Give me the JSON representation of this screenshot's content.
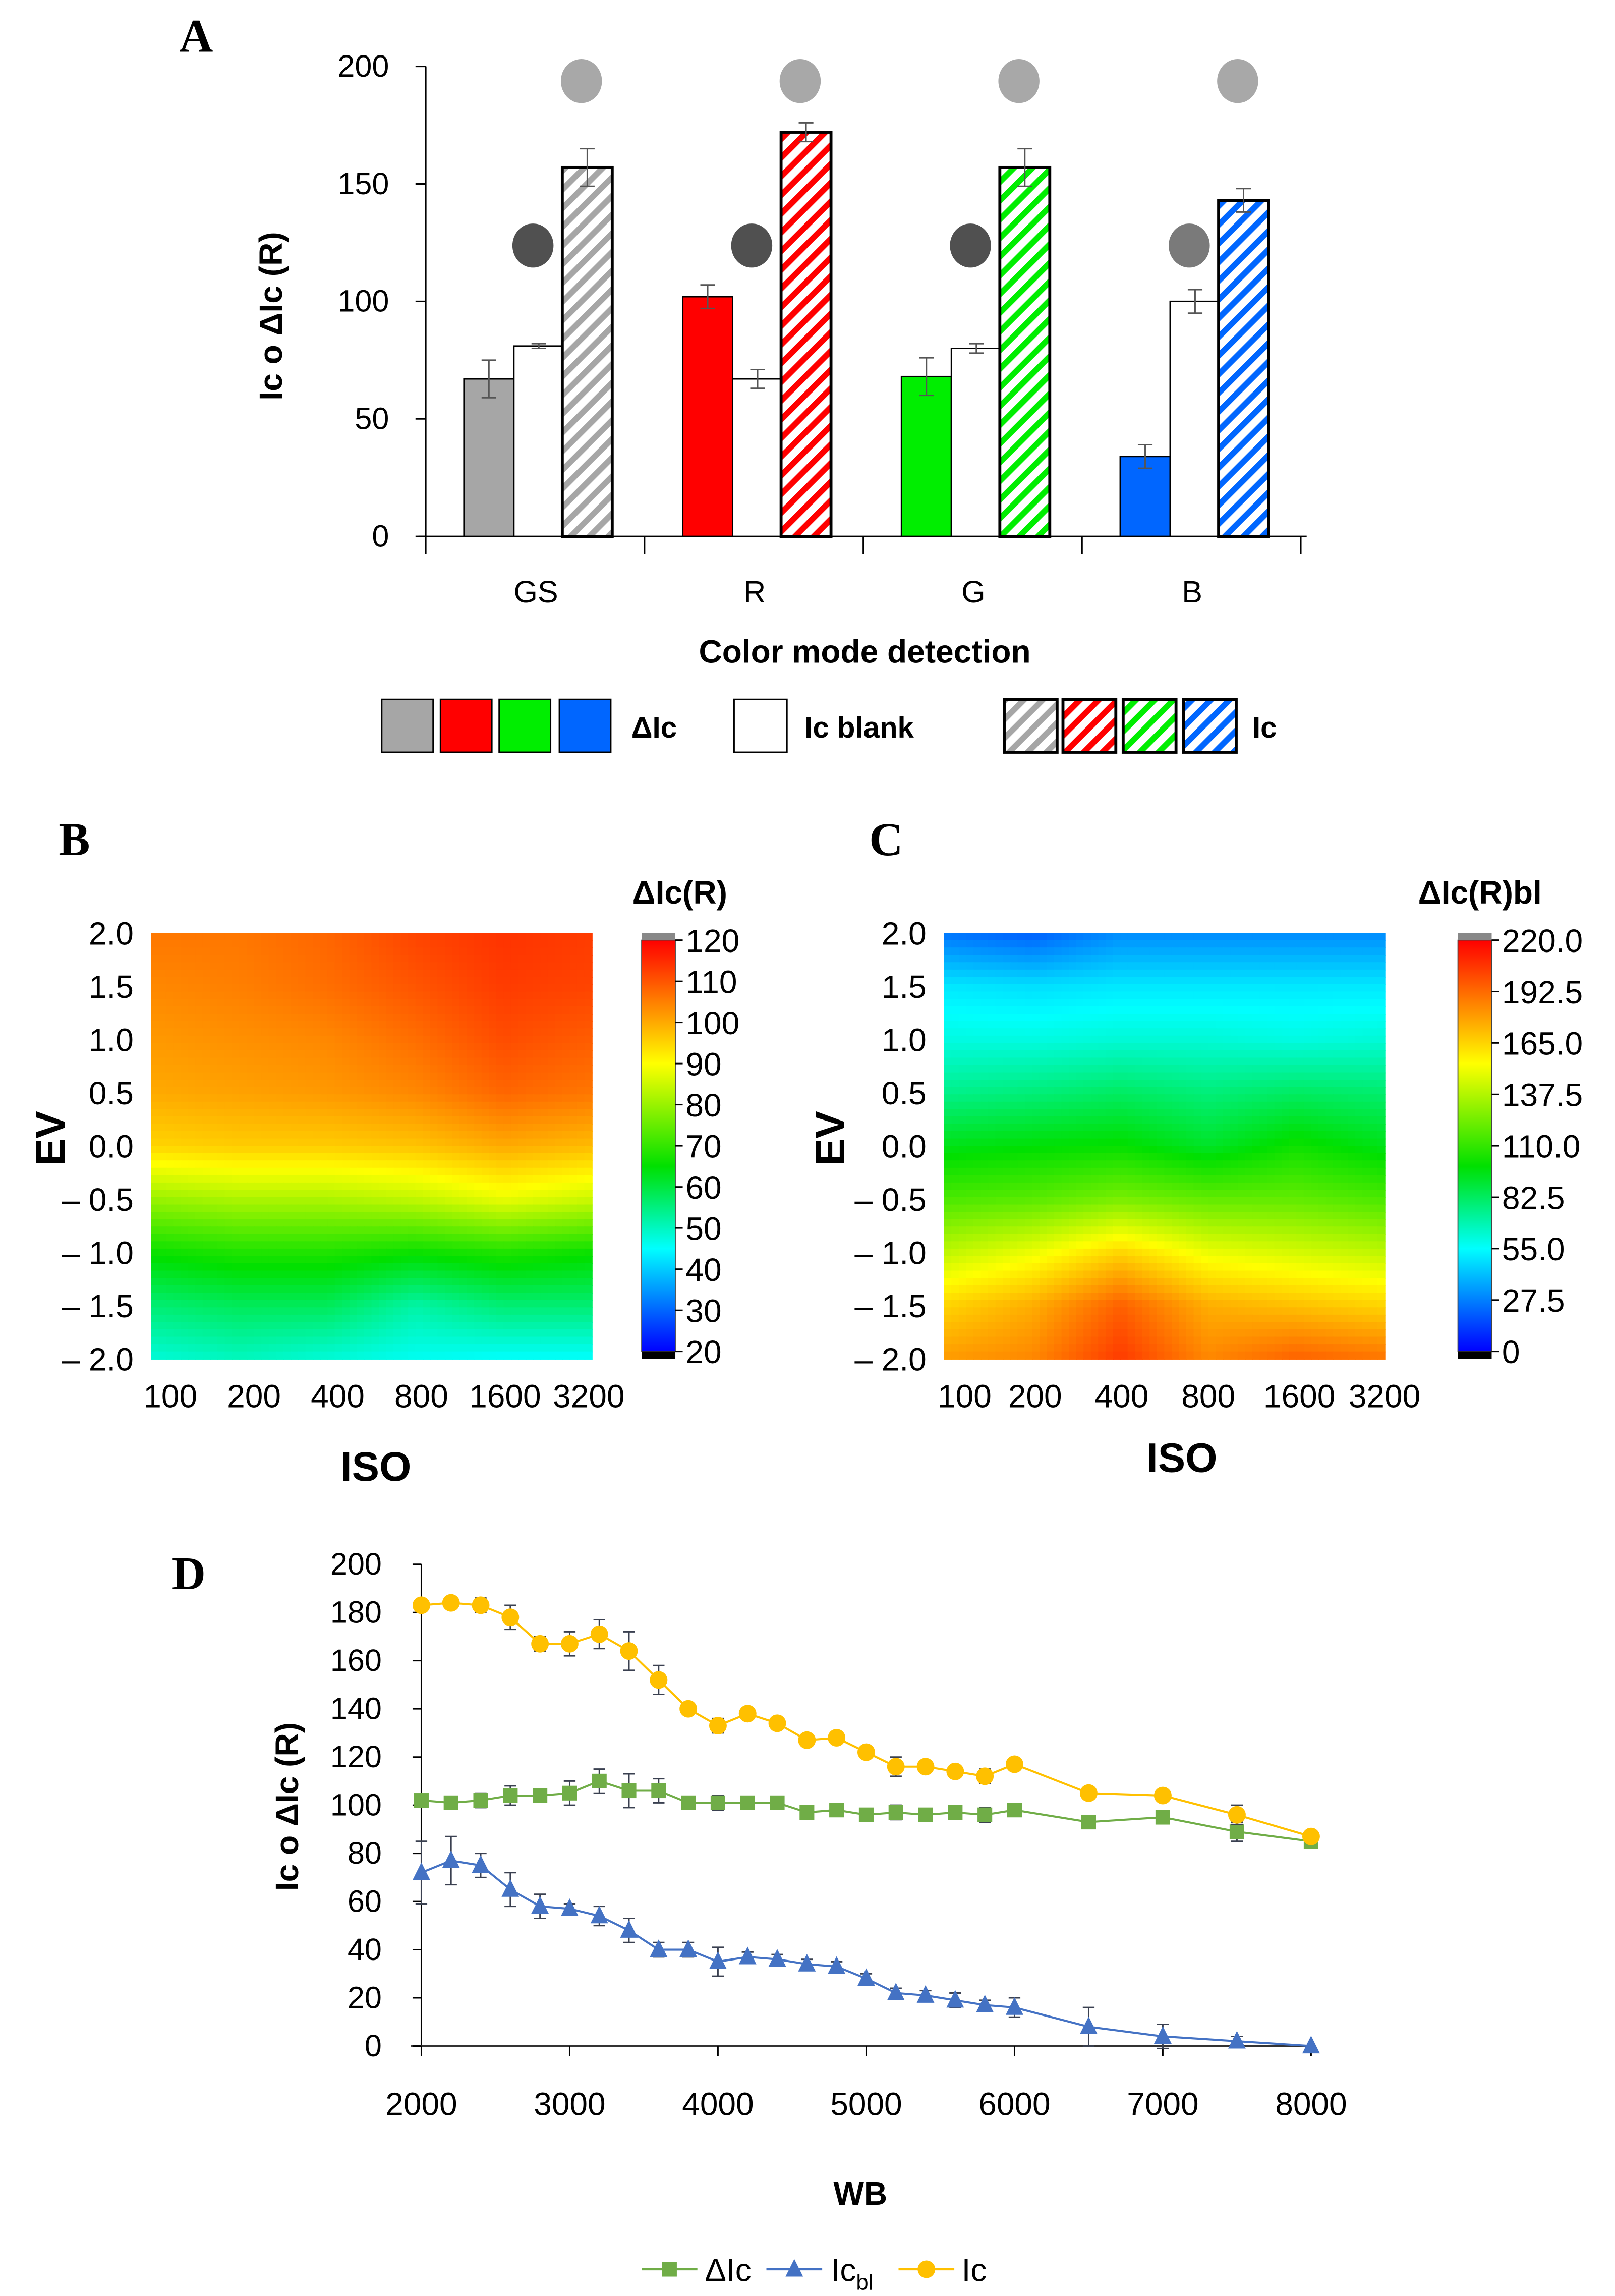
{
  "chart_data": [
    {
      "panel": "A",
      "type": "bar",
      "xlabel": "Color mode detection",
      "ylabel": "Ic  o ΔIc (R)",
      "ylim": [
        0,
        200
      ],
      "yticks": [
        0,
        50,
        100,
        150,
        200
      ],
      "categories": [
        "GS",
        "R",
        "G",
        "B"
      ],
      "colors": [
        "#a6a6a6",
        "#ff0000",
        "#00ee00",
        "#0066ff"
      ],
      "series": [
        {
          "name": "ΔIc",
          "values": [
            67,
            102,
            68,
            34
          ],
          "errors": [
            8,
            5,
            8,
            5
          ]
        },
        {
          "name": "Ic blank",
          "values": [
            81,
            67,
            80,
            100
          ],
          "errors": [
            1,
            4,
            2,
            5
          ]
        },
        {
          "name": "Ic",
          "values": [
            157,
            172,
            157,
            143
          ],
          "errors": [
            8,
            4,
            8,
            5
          ]
        }
      ],
      "legend": [
        "ΔIc",
        "Ic blank",
        "Ic"
      ]
    },
    {
      "panel": "B",
      "type": "heatmap",
      "title": "ΔIc(R)",
      "xlabel": "ISO",
      "ylabel": "EV",
      "x": [
        "100",
        "200",
        "400",
        "800",
        "1600",
        "3200"
      ],
      "y": [
        "2.0",
        "1.5",
        "1.0",
        "0.5",
        "0.0",
        "– 0.5",
        "– 1.0",
        "– 1.5",
        "– 2.0"
      ],
      "z": [
        [
          106,
          106,
          108,
          112,
          114,
          113
        ],
        [
          104,
          105,
          107,
          110,
          113,
          112
        ],
        [
          102,
          103,
          104,
          107,
          111,
          109
        ],
        [
          100,
          101,
          102,
          104,
          108,
          106
        ],
        [
          95,
          96,
          96,
          97,
          100,
          98
        ],
        [
          80,
          82,
          82,
          84,
          88,
          85
        ],
        [
          66,
          68,
          68,
          66,
          68,
          66
        ],
        [
          56,
          58,
          58,
          52,
          56,
          56
        ],
        [
          48,
          50,
          48,
          46,
          45,
          45
        ]
      ],
      "zlim": [
        20,
        120
      ],
      "colorbar_ticks": [
        "120",
        "110",
        "100",
        "90",
        "80",
        "70",
        "60",
        "50",
        "40",
        "30",
        "20"
      ]
    },
    {
      "panel": "C",
      "type": "heatmap",
      "title": "ΔIc(R)bl",
      "xlabel": "ISO",
      "ylabel": "EV",
      "x": [
        "100",
        "200",
        "400",
        "800",
        "1600",
        "3200"
      ],
      "y": [
        "2.0",
        "1.5",
        "1.0",
        "0.5",
        "0.0",
        "– 0.5",
        "– 1.0",
        "– 1.5",
        "– 2.0"
      ],
      "z": [
        [
          25,
          20,
          30,
          30,
          30,
          30
        ],
        [
          50,
          48,
          50,
          50,
          50,
          50
        ],
        [
          60,
          60,
          62,
          62,
          60,
          62
        ],
        [
          75,
          78,
          82,
          78,
          82,
          80
        ],
        [
          95,
          98,
          100,
          92,
          102,
          95
        ],
        [
          115,
          118,
          125,
          120,
          120,
          115
        ],
        [
          140,
          150,
          165,
          150,
          145,
          140
        ],
        [
          165,
          175,
          195,
          175,
          170,
          165
        ],
        [
          180,
          185,
          205,
          185,
          195,
          190
        ]
      ],
      "zlim": [
        0,
        220
      ],
      "colorbar_ticks": [
        "220.0",
        "192.5",
        "165.0",
        "137.5",
        "110.0",
        "82.5",
        "55.0",
        "27.5",
        "0"
      ]
    },
    {
      "panel": "D",
      "type": "line",
      "xlabel": "WB",
      "ylabel": "Ic o ΔIc (R)",
      "xlim": [
        2000,
        8000
      ],
      "ylim": [
        0,
        200
      ],
      "xticks": [
        2000,
        3000,
        4000,
        5000,
        6000,
        7000,
        8000
      ],
      "yticks": [
        0,
        20,
        40,
        60,
        80,
        100,
        120,
        140,
        160,
        180,
        200
      ],
      "x": [
        2000,
        2200,
        2400,
        2600,
        2800,
        3000,
        3200,
        3400,
        3600,
        3800,
        4000,
        4200,
        4400,
        4600,
        4800,
        5000,
        5200,
        5400,
        5600,
        5800,
        6000,
        6500,
        7000,
        7500,
        8000
      ],
      "series": [
        {
          "name": "ΔIc",
          "color": "#70ad47",
          "marker": "square",
          "values": [
            102,
            101,
            102,
            104,
            104,
            105,
            110,
            106,
            106,
            101,
            101,
            101,
            101,
            97,
            98,
            96,
            97,
            96,
            97,
            96,
            98,
            93,
            95,
            89,
            85
          ],
          "errors": [
            0,
            2,
            3,
            4,
            2,
            5,
            5,
            7,
            5,
            2,
            3,
            2,
            2,
            2,
            2,
            2,
            3,
            2,
            2,
            3,
            2,
            2,
            2,
            4,
            1
          ]
        },
        {
          "name": "Ic bl",
          "name_main": "Ic",
          "name_sub": "bl",
          "color": "#4472c4",
          "marker": "triangle",
          "values": [
            72,
            77,
            75,
            65,
            58,
            57,
            54,
            48,
            40,
            40,
            35,
            37,
            36,
            34,
            33,
            28,
            22,
            21,
            19,
            17,
            16,
            8,
            4,
            2,
            0
          ],
          "errors": [
            13,
            10,
            5,
            7,
            5,
            2,
            4,
            5,
            3,
            3,
            6,
            2,
            2,
            2,
            2,
            2,
            2,
            2,
            3,
            2,
            4,
            8,
            5,
            2,
            0
          ]
        },
        {
          "name": "Ic",
          "color": "#ffc000",
          "marker": "circle",
          "values": [
            183,
            184,
            183,
            178,
            167,
            167,
            171,
            164,
            152,
            140,
            133,
            138,
            134,
            127,
            128,
            122,
            116,
            116,
            114,
            112,
            117,
            105,
            104,
            96,
            87
          ],
          "errors": [
            0,
            0,
            3,
            5,
            3,
            5,
            6,
            8,
            6,
            2,
            3,
            0,
            0,
            0,
            0,
            0,
            4,
            0,
            0,
            3,
            0,
            2,
            0,
            4,
            0
          ]
        }
      ]
    }
  ],
  "panels": {
    "a": "A",
    "b": "B",
    "c": "C",
    "d": "D"
  }
}
